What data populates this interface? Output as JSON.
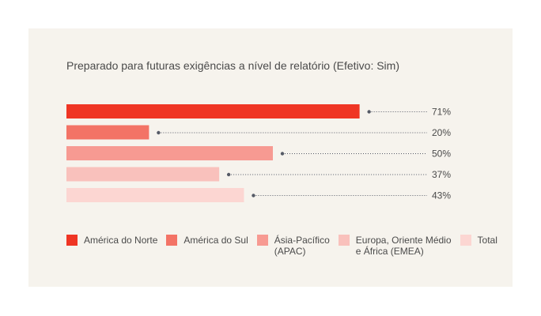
{
  "chart_data": {
    "type": "bar",
    "orientation": "horizontal",
    "title": "Preparado para futuras exigências a nível de relatório (Efetivo: Sim)",
    "categories": [
      "América do Norte",
      "América do Sul",
      "Ásia-Pacífico (APAC)",
      "Europa, Oriente Médio e África (EMEA)",
      "Total"
    ],
    "values": [
      71,
      20,
      50,
      37,
      43
    ],
    "value_labels": [
      "71%",
      "20%",
      "50%",
      "37%",
      "43%"
    ],
    "unit": "%",
    "xlim": [
      0,
      100
    ],
    "grid": false,
    "legend_position": "bottom",
    "colors": [
      "#ef3524",
      "#f37366",
      "#f79a92",
      "#f9c1bc",
      "#fcd6d2"
    ],
    "legend": [
      {
        "lines": [
          "América do Norte"
        ]
      },
      {
        "lines": [
          "América do Sul"
        ]
      },
      {
        "lines": [
          "Ásia-Pacífico",
          "(APAC)"
        ]
      },
      {
        "lines": [
          "Europa, Oriente Médio",
          "e África (EMEA)"
        ]
      },
      {
        "lines": [
          "Total"
        ]
      }
    ]
  },
  "colors": {
    "background": "#f6f3ed",
    "text": "#4a4a4a",
    "leader": "#555a66"
  }
}
